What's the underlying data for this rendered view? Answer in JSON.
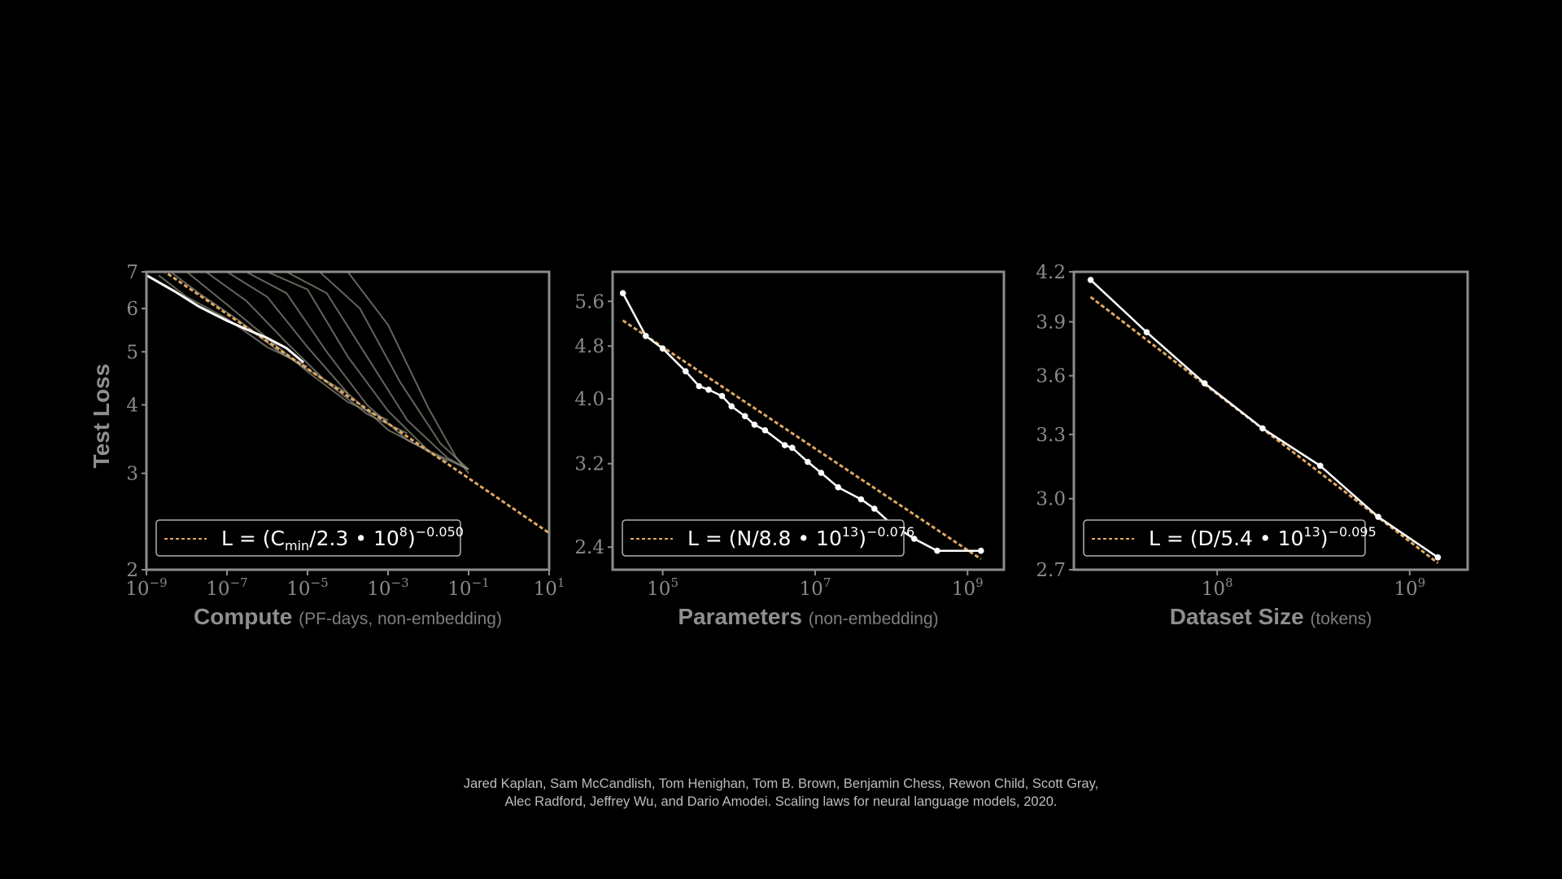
{
  "chart_data": [
    {
      "type": "line",
      "panel": "compute",
      "xscale": "log",
      "yscale": "log",
      "xlim": [
        1e-09,
        10
      ],
      "ylim": [
        2,
        7
      ],
      "xticks": [
        {
          "base": "10",
          "exp": "−9",
          "value": 1e-09
        },
        {
          "base": "10",
          "exp": "−7",
          "value": 1e-07
        },
        {
          "base": "10",
          "exp": "−5",
          "value": 1e-05
        },
        {
          "base": "10",
          "exp": "−3",
          "value": 0.001
        },
        {
          "base": "10",
          "exp": "−1",
          "value": 0.1
        },
        {
          "base": "10",
          "exp": "1",
          "value": 10
        }
      ],
      "yticks": [
        {
          "label": "7",
          "value": 7
        },
        {
          "label": "6",
          "value": 6
        },
        {
          "label": "5",
          "value": 5
        },
        {
          "label": "4",
          "value": 4
        },
        {
          "label": "3",
          "value": 3
        },
        {
          "label": "2",
          "value": 2
        }
      ],
      "xlabel": "Compute",
      "xlabel_unit": "(PF-days, non-embedding)",
      "ylabel": "Test Loss",
      "legend": {
        "lhs": "L = (C",
        "sub": "min",
        "mid": "/2.3 • 10",
        "sup1": "8",
        "close": ")",
        "sup2": "−0.050",
        "placement": "lower-left"
      },
      "fit": {
        "c": 230000000.0,
        "alpha": 0.05,
        "color": "#e0a962"
      },
      "frontier": {
        "x": [
          1e-09,
          5e-09,
          2e-08,
          1e-07,
          3e-07,
          1e-06,
          3e-06,
          8e-06
        ],
        "y": [
          6.9,
          6.45,
          6.05,
          5.7,
          5.5,
          5.3,
          5.08,
          4.78
        ]
      },
      "curves": [
        {
          "x": [
            2e-09,
            1e-08,
            1e-07,
            1e-06,
            1e-05
          ],
          "y": [
            6.9,
            6.3,
            5.75,
            5.1,
            4.7
          ]
        },
        {
          "x": [
            4e-09,
            2e-08,
            2e-07,
            2e-06,
            2e-05,
            0.0001
          ],
          "y": [
            7.0,
            6.4,
            5.7,
            5.0,
            4.5,
            4.2
          ]
        },
        {
          "x": [
            1e-08,
            1e-07,
            1e-06,
            1e-05,
            0.0001,
            0.001
          ],
          "y": [
            7.0,
            6.1,
            5.3,
            4.6,
            4.05,
            3.75
          ]
        },
        {
          "x": [
            3e-08,
            3e-07,
            3e-06,
            3e-05,
            0.0003,
            0.003
          ],
          "y": [
            7.0,
            6.2,
            5.2,
            4.4,
            3.85,
            3.55
          ]
        },
        {
          "x": [
            1e-07,
            1e-06,
            1e-05,
            0.0001,
            0.001,
            0.01
          ],
          "y": [
            7.0,
            6.3,
            5.1,
            4.2,
            3.6,
            3.3
          ]
        },
        {
          "x": [
            3e-07,
            3e-06,
            3e-05,
            0.0003,
            0.003,
            0.03
          ],
          "y": [
            7.0,
            6.4,
            5.0,
            4.0,
            3.45,
            3.15
          ]
        },
        {
          "x": [
            1e-06,
            1e-05,
            0.0001,
            0.001,
            0.01,
            0.1
          ],
          "y": [
            7.0,
            6.5,
            4.9,
            3.9,
            3.3,
            3.05
          ]
        },
        {
          "x": [
            3e-06,
            3e-05,
            0.0003,
            0.003,
            0.03,
            0.1
          ],
          "y": [
            7.0,
            6.4,
            4.9,
            3.75,
            3.2,
            3.05
          ]
        },
        {
          "x": [
            2e-05,
            0.0002,
            0.002,
            0.02,
            0.1
          ],
          "y": [
            7.0,
            6.0,
            4.4,
            3.4,
            3.05
          ]
        },
        {
          "x": [
            0.0001,
            0.001,
            0.01,
            0.05,
            0.1
          ],
          "y": [
            7.0,
            5.6,
            3.95,
            3.2,
            3.0
          ]
        }
      ]
    },
    {
      "type": "line",
      "panel": "parameters",
      "xscale": "log",
      "yscale": "log",
      "xlim": [
        22000,
        3000000000
      ],
      "ylim": [
        2.22,
        6.2
      ],
      "xticks": [
        {
          "base": "10",
          "exp": "5",
          "value": 100000
        },
        {
          "base": "10",
          "exp": "7",
          "value": 10000000
        },
        {
          "base": "10",
          "exp": "9",
          "value": 1000000000
        }
      ],
      "yticks": [
        {
          "label": "5.6",
          "value": 5.6
        },
        {
          "label": "4.8",
          "value": 4.8
        },
        {
          "label": "4.0",
          "value": 4.0
        },
        {
          "label": "3.2",
          "value": 3.2
        },
        {
          "label": "2.4",
          "value": 2.4
        }
      ],
      "xlabel": "Parameters",
      "xlabel_unit": "(non-embedding)",
      "legend": {
        "lhs": "L = (N/8.8 • 10",
        "sup1": "13",
        "close": ")",
        "sup2": "−0.076",
        "placement": "lower-left"
      },
      "fit": {
        "c": 88000000000000.0,
        "alpha": 0.076,
        "color": "#e0a962"
      },
      "series": {
        "x": [
          30000,
          60000,
          100000,
          200000,
          300000,
          400000,
          600000,
          800000,
          1200000,
          1600000,
          2200000,
          4000000,
          5000000,
          8000000,
          12000000,
          20000000,
          40000000,
          60000000,
          100000000,
          200000000,
          400000000,
          1500000000
        ],
        "y": [
          5.76,
          4.97,
          4.76,
          4.4,
          4.18,
          4.13,
          4.04,
          3.9,
          3.77,
          3.66,
          3.59,
          3.41,
          3.38,
          3.22,
          3.1,
          2.95,
          2.83,
          2.74,
          2.6,
          2.47,
          2.37,
          2.37
        ]
      }
    },
    {
      "type": "line",
      "panel": "dataset",
      "xscale": "log",
      "yscale": "log",
      "xlim": [
        18000000,
        2000000000
      ],
      "ylim": [
        2.7,
        4.2
      ],
      "xticks": [
        {
          "base": "10",
          "exp": "8",
          "value": 100000000
        },
        {
          "base": "10",
          "exp": "9",
          "value": 1000000000
        }
      ],
      "yticks": [
        {
          "label": "4.2",
          "value": 4.2
        },
        {
          "label": "3.9",
          "value": 3.9
        },
        {
          "label": "3.6",
          "value": 3.6
        },
        {
          "label": "3.3",
          "value": 3.3
        },
        {
          "label": "3.0",
          "value": 3.0
        },
        {
          "label": "2.7",
          "value": 2.7
        }
      ],
      "xlabel": "Dataset Size",
      "xlabel_unit": "(tokens)",
      "legend": {
        "lhs": "L = (D/5.4 • 10",
        "sup1": "13",
        "close": ")",
        "sup2": "−0.095",
        "placement": "lower-left"
      },
      "fit": {
        "c": 54000000000000.0,
        "alpha": 0.095,
        "color": "#e0a962"
      },
      "series": {
        "x": [
          22000000,
          43000000,
          86000000,
          172000000,
          343000000,
          686000000,
          1400000000
        ],
        "y": [
          4.15,
          3.84,
          3.56,
          3.33,
          3.15,
          2.92,
          2.75
        ]
      }
    }
  ],
  "citation": {
    "line1": "Jared Kaplan, Sam McCandlish, Tom Henighan, Tom B. Brown, Benjamin Chess, Rewon Child, Scott Gray,",
    "line2": "Alec Radford, Jeffrey Wu, and Dario Amodei. Scaling laws for neural language models, 2020."
  },
  "colors": {
    "background": "#000000",
    "frame": "#8c8c8c",
    "fit_line": "#e0a962",
    "data_line": "#ffffff",
    "run_curves": "#9a9a8a"
  }
}
